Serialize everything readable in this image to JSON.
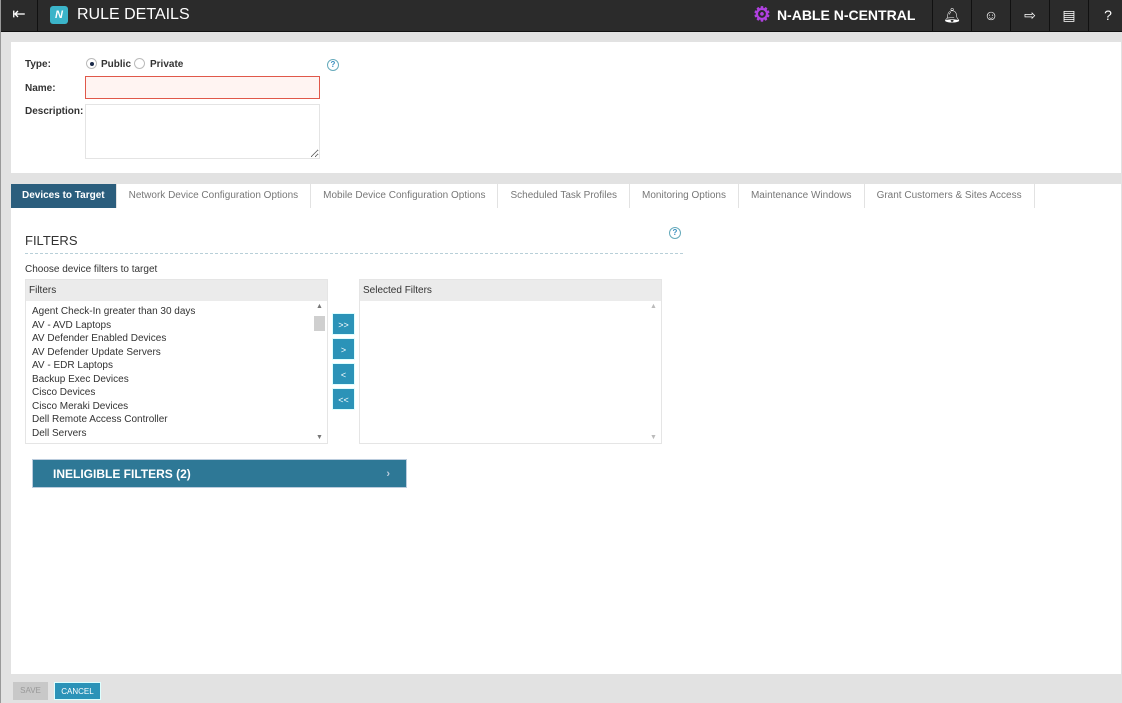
{
  "header": {
    "title": "RULE DETAILS",
    "brand": "N-ABLE N-CENTRAL",
    "logo_text": "N",
    "icons": [
      "menu-collapse-icon",
      "bell-icon",
      "user-icon",
      "logout-icon",
      "chat-icon",
      "help-icon"
    ]
  },
  "form": {
    "type_label": "Type:",
    "type_options": [
      "Public",
      "Private"
    ],
    "type_selected": "Public",
    "name_label": "Name:",
    "name_value": "",
    "description_label": "Description:",
    "description_value": ""
  },
  "tabs": [
    "Devices to Target",
    "Network Device Configuration Options",
    "Mobile Device Configuration Options",
    "Scheduled Task Profiles",
    "Monitoring Options",
    "Maintenance Windows",
    "Grant Customers & Sites Access"
  ],
  "active_tab": "Devices to Target",
  "filters": {
    "heading": "FILTERS",
    "instruction": "Choose device filters to target",
    "available_header": "Filters",
    "selected_header": "Selected Filters",
    "available": [
      "Agent Check-In greater than 30 days",
      "AV - AVD Laptops",
      "AV Defender Enabled Devices",
      "AV Defender Update Servers",
      "AV - EDR Laptops",
      "Backup Exec Devices",
      "Cisco Devices",
      "Cisco Meraki Devices",
      "Dell Remote Access Controller",
      "Dell Servers"
    ],
    "selected": [],
    "move_buttons": [
      ">>",
      ">",
      "<",
      "<<"
    ],
    "ineligible_label": "INELIGIBLE FILTERS (2)"
  },
  "footer": {
    "save": "SAVE",
    "cancel": "CANCEL"
  },
  "colors": {
    "topbar": "#2b2b2b",
    "active_tab": "#2b5e7d",
    "button": "#2b93b8",
    "ineligible": "#2e7896",
    "brand_icon": "#b040e0",
    "error_border": "#e0584a"
  }
}
